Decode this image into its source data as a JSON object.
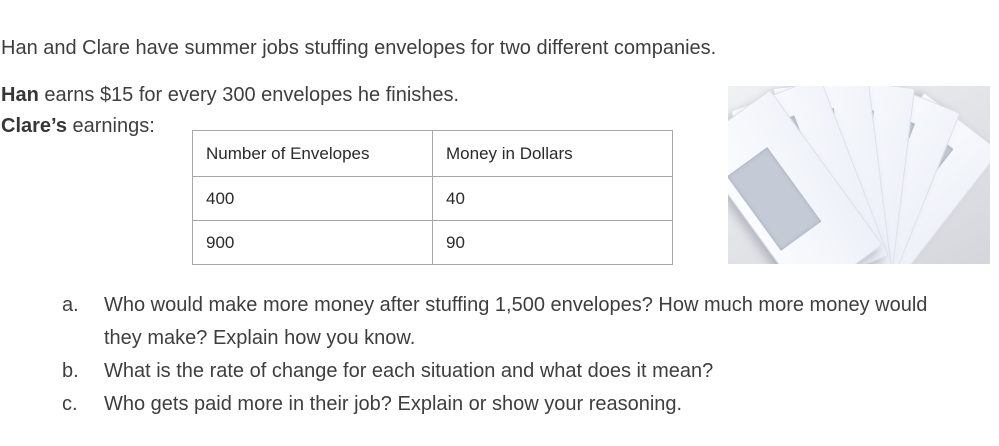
{
  "intro": "Han and Clare have summer jobs stuffing envelopes for two different companies.",
  "earnings": {
    "han_name": "Han",
    "han_text": " earns $15 for every 300 envelopes he finishes.",
    "clare_name": "Clare’s",
    "clare_text": " earnings:"
  },
  "table": {
    "headers": [
      "Number of Envelopes",
      "Money in Dollars"
    ],
    "rows": [
      [
        "400",
        "40"
      ],
      [
        "900",
        "90"
      ]
    ]
  },
  "photo": {
    "description": "fan of six white window envelopes on a gray surface"
  },
  "questions": [
    {
      "marker": "a.",
      "text": "Who would make more money after stuffing 1,500 envelopes? How much more money would they make? Explain how you know."
    },
    {
      "marker": "b.",
      "text": "What is the rate of change for each situation and what does it mean?"
    },
    {
      "marker": "c.",
      "text": "Who gets paid more in their job? Explain or show your reasoning."
    }
  ],
  "colors": {
    "text": "#3e3e3e",
    "table_border": "#a8a8a8",
    "photo_background": "#e0e2e7",
    "envelope": "#f7f9fd",
    "envelope_window": "#c5cbd6"
  }
}
